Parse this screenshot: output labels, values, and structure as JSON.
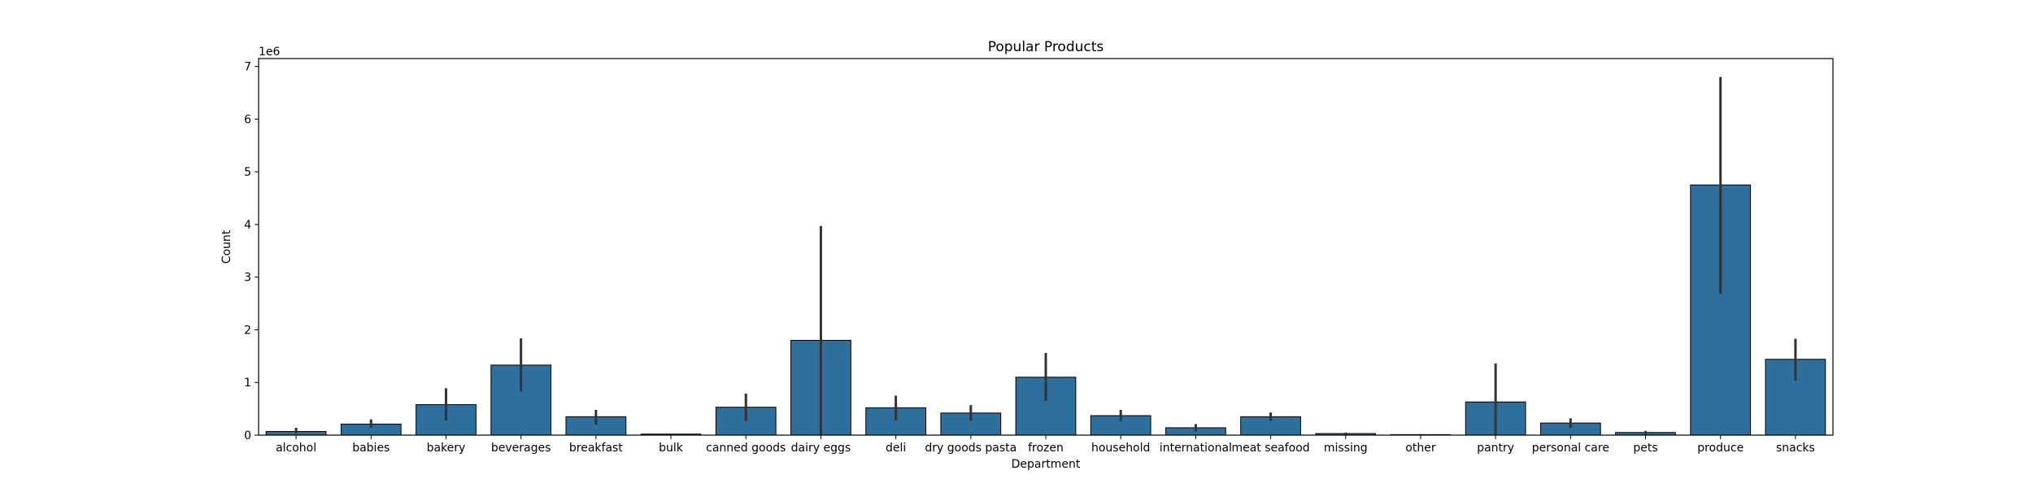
{
  "chart_data": {
    "type": "bar",
    "title": "Popular Products",
    "xlabel": "Department",
    "ylabel": "Count",
    "y_scale_label": "1e6",
    "ylim": [
      0,
      7.15
    ],
    "yticks": [
      "0",
      "1",
      "2",
      "3",
      "4",
      "5",
      "6",
      "7"
    ],
    "categories": [
      "alcohol",
      "babies",
      "bakery",
      "beverages",
      "breakfast",
      "bulk",
      "canned goods",
      "dairy eggs",
      "deli",
      "dry goods pasta",
      "frozen",
      "household",
      "international",
      "meat seafood",
      "missing",
      "other",
      "pantry",
      "personal care",
      "pets",
      "produce",
      "snacks"
    ],
    "values": [
      0.07,
      0.21,
      0.58,
      1.33,
      0.35,
      0.02,
      0.53,
      1.8,
      0.52,
      0.42,
      1.1,
      0.37,
      0.14,
      0.35,
      0.03,
      0.01,
      0.63,
      0.23,
      0.05,
      4.75,
      1.44
    ],
    "error_low": [
      0.03,
      0.14,
      0.28,
      0.83,
      0.2,
      0.0,
      0.27,
      0.0,
      0.28,
      0.27,
      0.65,
      0.26,
      0.07,
      0.27,
      0.01,
      0.0,
      0.0,
      0.14,
      0.02,
      2.68,
      1.04
    ],
    "error_high": [
      0.14,
      0.3,
      0.89,
      1.84,
      0.48,
      0.03,
      0.79,
      3.97,
      0.75,
      0.57,
      1.56,
      0.48,
      0.21,
      0.43,
      0.05,
      0.02,
      1.36,
      0.32,
      0.08,
      6.8,
      1.83
    ],
    "grid": false,
    "bar_color": "#2e6f9e",
    "errorbar_color": "#333333",
    "y_unit": "millions"
  }
}
